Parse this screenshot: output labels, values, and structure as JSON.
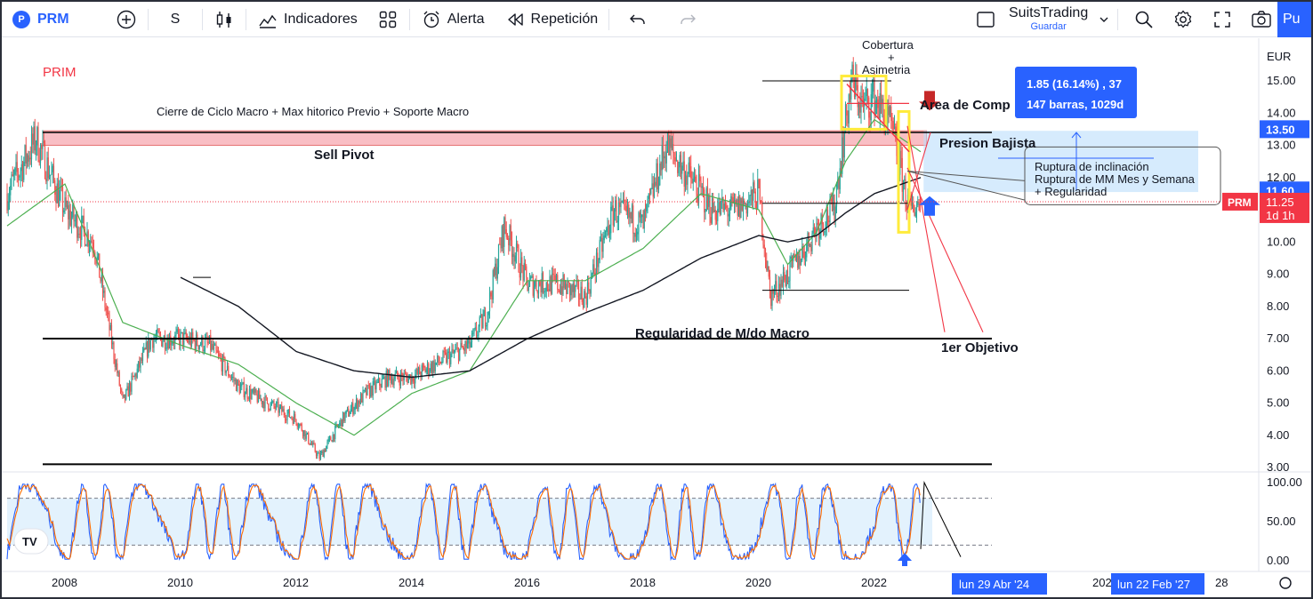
{
  "toolbar": {
    "symbol": "PRM",
    "symbol_badge": "P",
    "interval": "S",
    "indicators_label": "Indicadores",
    "alert_label": "Alerta",
    "replay_label": "Repetición",
    "layout_name": "SuitsTrading",
    "save_label": "Guardar",
    "publish_label": "Pu"
  },
  "chart": {
    "symbol_label": "PRIM",
    "currency": "EUR",
    "price_ticks": [
      "15.00",
      "14.00",
      "13.00",
      "12.00",
      "11.00",
      "10.00",
      "9.00",
      "8.00",
      "7.00",
      "6.00",
      "5.00",
      "4.00",
      "3.00"
    ],
    "osc_ticks": [
      "100.00",
      "50.00",
      "0.00"
    ],
    "time_ticks": [
      "2008",
      "2010",
      "2012",
      "2014",
      "2016",
      "2018",
      "2020",
      "2022",
      "2026",
      "28"
    ],
    "price_badges": {
      "level_1350": "13.50",
      "level_1160": "11.60",
      "prm_tag": "PRM",
      "last_price": "11.25",
      "countdown": "1d 1h"
    },
    "time_badges": [
      "lun 29 Abr '24",
      "lun 22 Feb '27"
    ],
    "measure": {
      "line1": "1.85 (16.14%) , 37",
      "line2": "147 barras, 1029d"
    },
    "annotations": {
      "cobertura": "Cobertura",
      "plus": "+",
      "asimetria": "Asimetria",
      "area_compra": "Area de Comp",
      "cierre_ciclo": "Cierre de Ciclo Macro + Max hitorico Previo + Soporte Macro",
      "sell_pivot": "Sell Pivot",
      "presion_bajista": "Presion Bajista",
      "ruptura_1": "Ruptura de inclinación",
      "ruptura_2": "Ruptura de MM Mes y Semana",
      "ruptura_3": "+ Regularidad",
      "regularidad": "Regularidad de M/do Macro",
      "objetivo": "1er Objetivo"
    },
    "logo_text": "TV"
  },
  "colors": {
    "up": "#26a69a",
    "down": "#ef5350",
    "ma_fast": "#4caf50",
    "ma_slow": "#131722",
    "accent": "#2962ff",
    "osc_k": "#2962ff",
    "osc_d": "#ff6d00"
  },
  "chart_data": {
    "type": "candlestick",
    "x_range": [
      "2007",
      "2028"
    ],
    "y_range": [
      3.0,
      15.6
    ],
    "log_scale": false,
    "series": [
      {
        "name": "",
        "x": [
          2007.0,
          2007.5,
          2008.0,
          2008.5,
          2009.0,
          2009.5,
          2010.0,
          2010.5,
          2011.0,
          2011.5,
          2012.0,
          2012.4,
          2012.8,
          2013.2,
          2013.6,
          2014.0,
          2014.5,
          2015.0,
          2015.3,
          2015.6,
          2016.0,
          2016.5,
          2017.0,
          2017.5,
          2018.0,
          2018.4,
          2018.8,
          2019.2,
          2019.6,
          2020.0,
          2020.2,
          2020.5,
          2020.8,
          2021.0,
          2021.3,
          2021.6,
          2021.8,
          2022.0,
          2022.3,
          2022.6,
          2022.8
        ],
        "y": [
          11.5,
          13.2,
          11.0,
          10.0,
          5.0,
          7.0,
          7.0,
          6.8,
          5.5,
          5.0,
          4.5,
          3.3,
          4.5,
          5.3,
          5.8,
          5.8,
          6.3,
          6.8,
          7.8,
          10.5,
          8.7,
          8.7,
          8.3,
          11.0,
          10.5,
          13.0,
          12.0,
          11.0,
          11.0,
          11.5,
          8.3,
          9.0,
          9.8,
          10.5,
          11.0,
          15.0,
          14.2,
          14.5,
          13.5,
          11.0,
          11.25
        ]
      },
      {
        "name": "",
        "x": [
          2007.0,
          2008.0,
          2009.0,
          2010.0,
          2011.0,
          2012.0,
          2013.0,
          2014.0,
          2015.0,
          2016.0,
          2017.0,
          2018.0,
          2019.0,
          2020.0,
          2020.5,
          2021.0,
          2021.5,
          2022.0,
          2022.8
        ],
        "y": [
          10.5,
          11.8,
          7.5,
          6.8,
          6.2,
          5.0,
          4.0,
          5.3,
          6.0,
          8.8,
          8.8,
          9.8,
          11.5,
          11.0,
          9.3,
          10.3,
          12.5,
          13.8,
          12.8
        ]
      },
      {
        "name": "",
        "x": [
          2010.0,
          2011.0,
          2012.0,
          2013.0,
          2014.0,
          2015.0,
          2016.0,
          2017.0,
          2018.0,
          2019.0,
          2020.0,
          2020.5,
          2021.0,
          2021.5,
          2022.0,
          2022.8
        ],
        "y": [
          8.9,
          8.0,
          6.6,
          6.0,
          5.8,
          6.0,
          7.0,
          7.8,
          8.5,
          9.5,
          10.2,
          10.0,
          10.2,
          10.9,
          11.5,
          12.0
        ]
      }
    ],
    "levels": [
      13.4,
      13.0,
      7.0,
      3.1
    ]
  }
}
